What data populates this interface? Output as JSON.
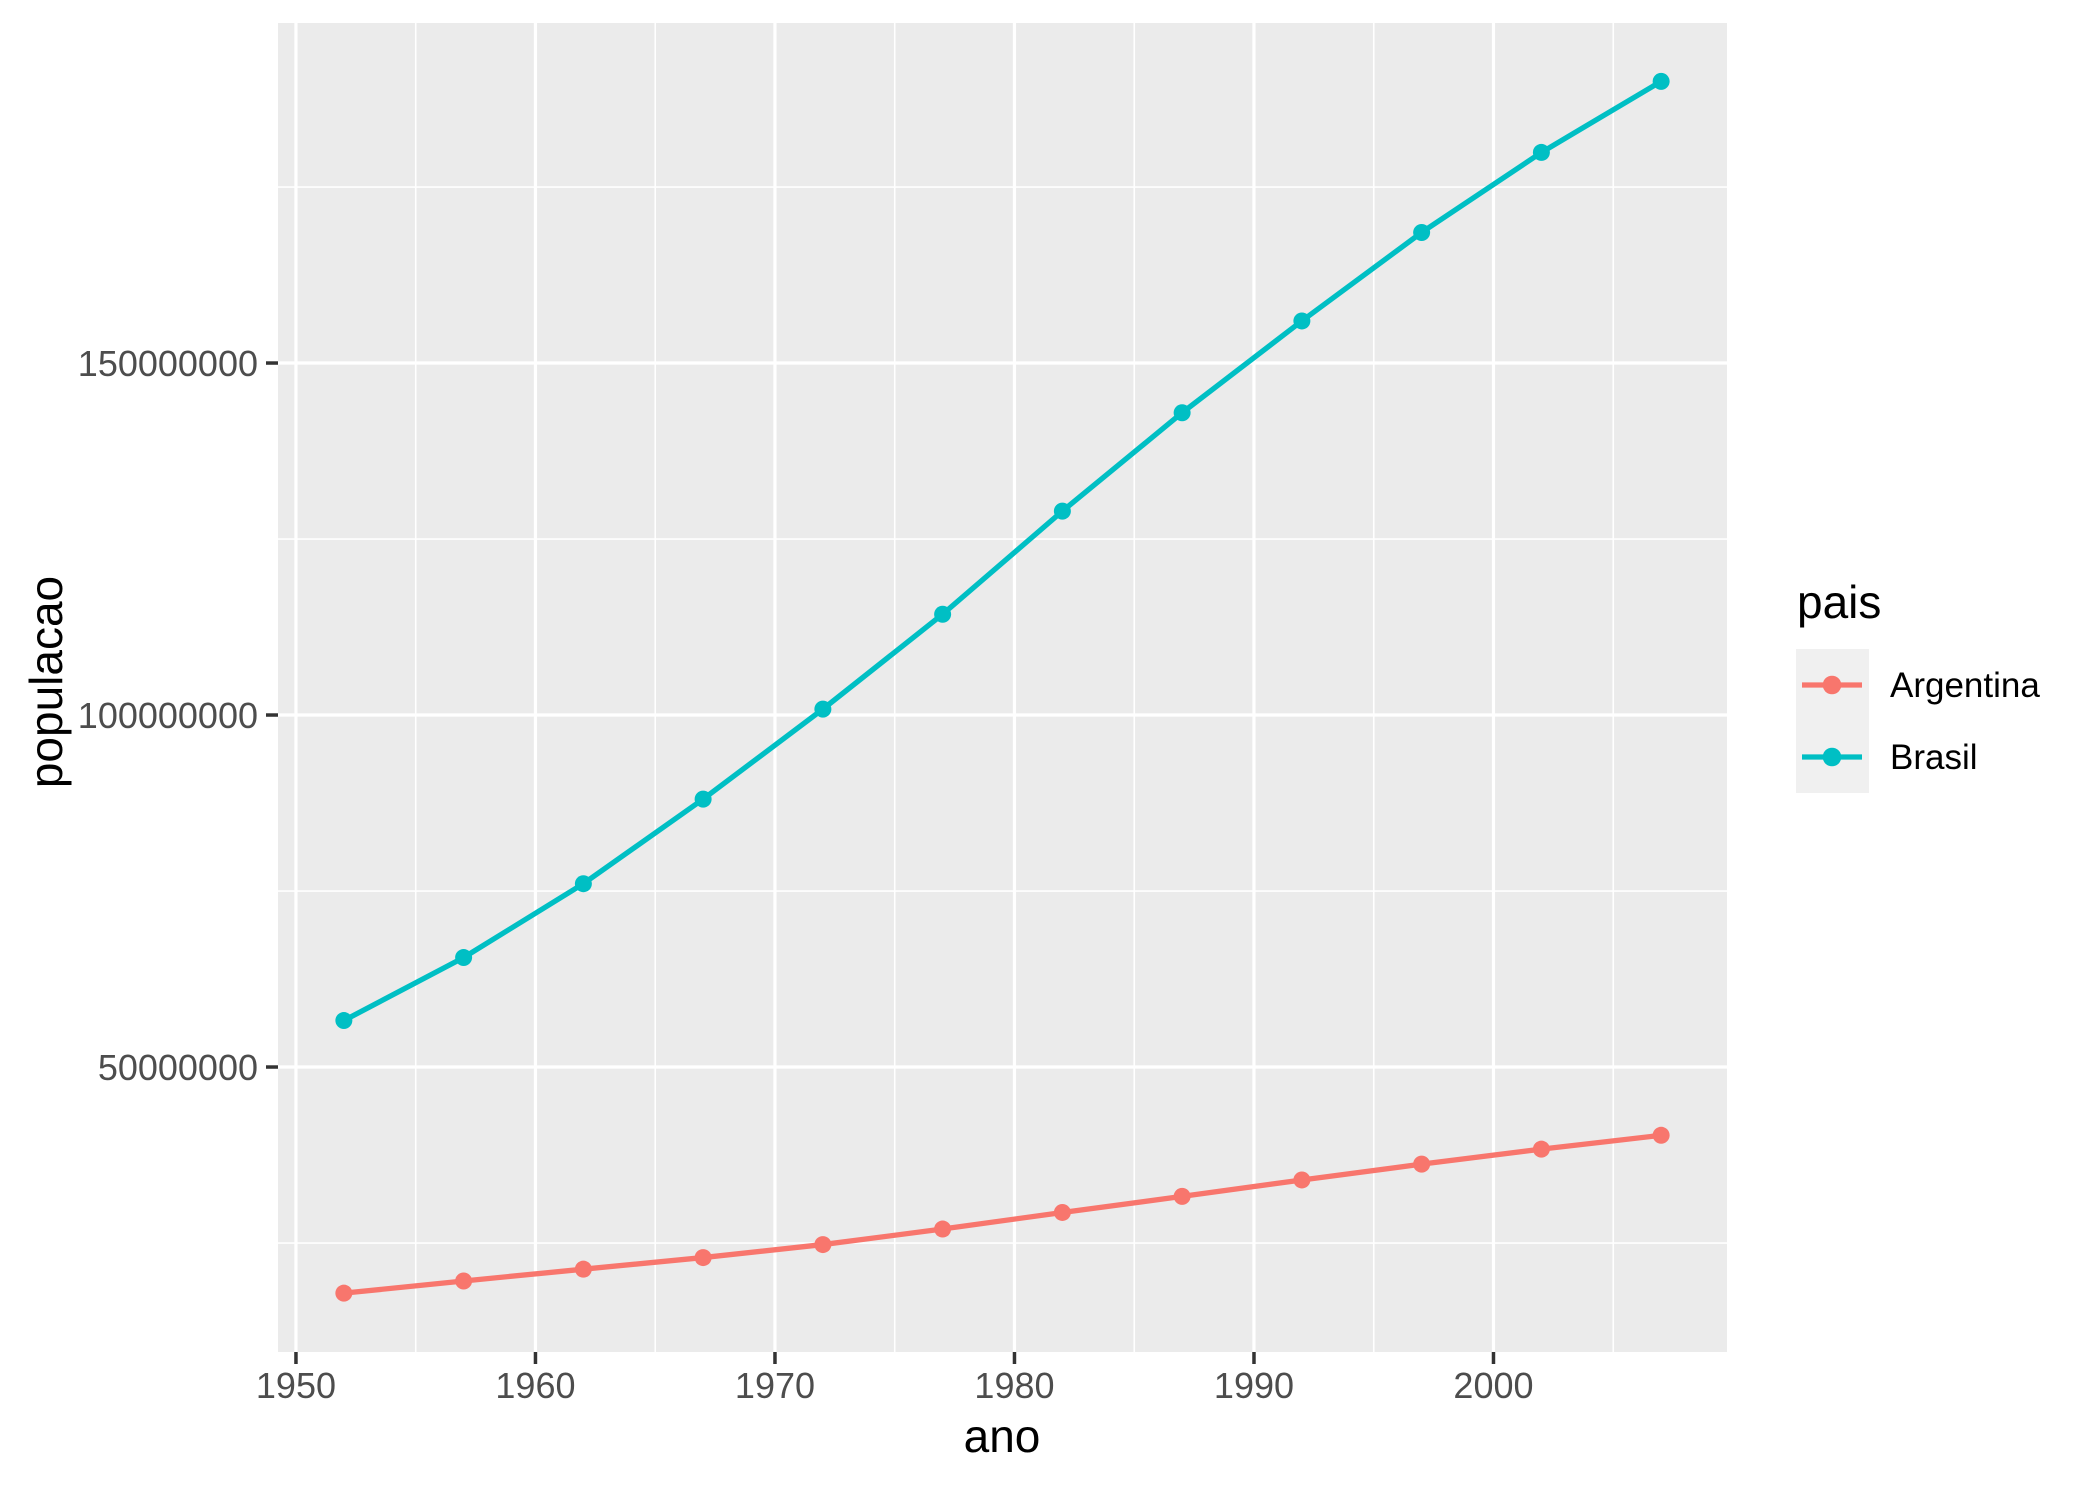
{
  "chart_data": {
    "type": "line",
    "title": "",
    "xlabel": "ano",
    "ylabel": "populacao",
    "legend_title": "pais",
    "legend_position": "right",
    "grid": true,
    "panel_background_color": "#EBEBEB",
    "gridline_color": "#FFFFFF",
    "tick_label_color": "#4D4D4D",
    "tick_mark_color": "#333333",
    "legend_key_background_color": "#F0F0F0",
    "x": [
      1952,
      1957,
      1962,
      1967,
      1972,
      1977,
      1982,
      1987,
      1992,
      1997,
      2002,
      2007
    ],
    "series": [
      {
        "name": "Argentina",
        "color": "#F8766D",
        "values": [
          17876956,
          19610538,
          21283783,
          22934225,
          24779799,
          26983828,
          29341374,
          31620918,
          33958947,
          36203463,
          38331121,
          40301927
        ]
      },
      {
        "name": "Brasil",
        "color": "#00BFC4",
        "values": [
          56602560,
          65551171,
          76039390,
          88049823,
          100840058,
          114313951,
          128962939,
          142938076,
          155975974,
          168546719,
          179914212,
          190010647
        ]
      }
    ],
    "x_ticks": [
      1950,
      1960,
      1970,
      1980,
      1990,
      2000
    ],
    "x_tick_labels": [
      "1950",
      "1960",
      "1970",
      "1980",
      "1990",
      "2000"
    ],
    "x_minor_ticks": [
      1955,
      1965,
      1975,
      1985,
      1995,
      2005
    ],
    "y_ticks": [
      50000000,
      100000000,
      150000000
    ],
    "y_tick_labels": [
      "50000000",
      "100000000",
      "150000000"
    ],
    "y_minor_ticks": [
      25000000,
      75000000,
      125000000,
      175000000
    ],
    "xlim": [
      1949.25,
      2009.75
    ],
    "ylim": [
      9520000,
      198300000
    ]
  }
}
